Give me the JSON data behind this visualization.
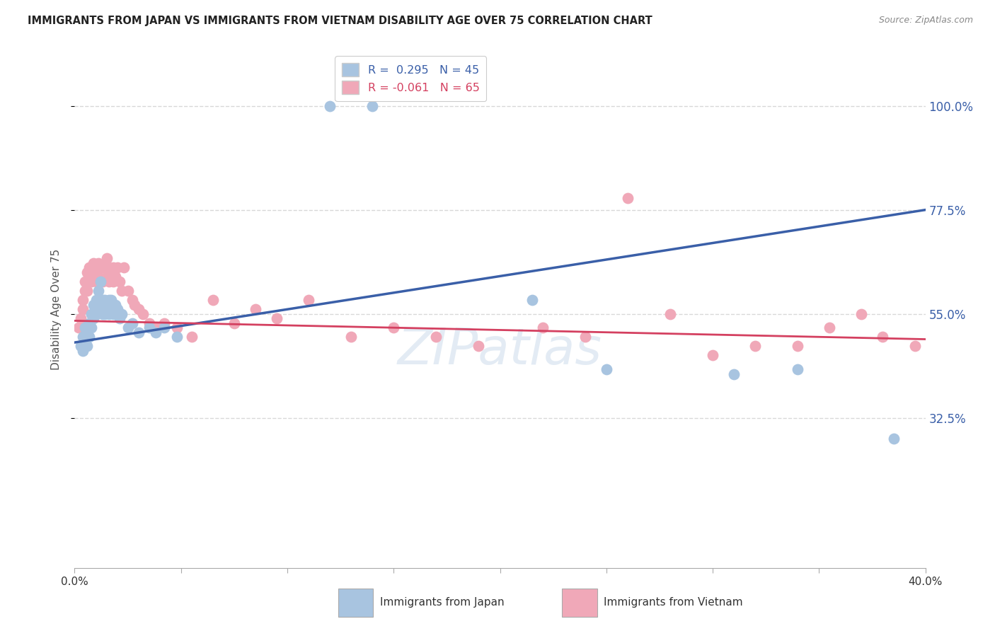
{
  "title": "IMMIGRANTS FROM JAPAN VS IMMIGRANTS FROM VIETNAM DISABILITY AGE OVER 75 CORRELATION CHART",
  "source": "Source: ZipAtlas.com",
  "ylabel": "Disability Age Over 75",
  "legend_japan_R": "0.295",
  "legend_japan_N": "45",
  "legend_vietnam_R": "-0.061",
  "legend_vietnam_N": "65",
  "japan_color": "#a8c4e0",
  "vietnam_color": "#f0a8b8",
  "japan_line_color": "#3a5fa8",
  "vietnam_line_color": "#d44060",
  "xmin": 0.0,
  "xmax": 0.4,
  "ymin": 0.0,
  "ymax": 1.12,
  "yticks": [
    0.325,
    0.55,
    0.775,
    1.0
  ],
  "ytick_labels": [
    "32.5%",
    "55.0%",
    "77.5%",
    "100.0%"
  ],
  "xticks": [
    0.0,
    0.05,
    0.1,
    0.15,
    0.2,
    0.25,
    0.3,
    0.35,
    0.4
  ],
  "xtick_labels": [
    "0.0%",
    "",
    "",
    "",
    "",
    "",
    "",
    "",
    "40.0%"
  ],
  "japan_points_x": [
    0.003,
    0.004,
    0.004,
    0.005,
    0.005,
    0.006,
    0.006,
    0.007,
    0.007,
    0.008,
    0.008,
    0.009,
    0.009,
    0.01,
    0.01,
    0.011,
    0.011,
    0.012,
    0.013,
    0.013,
    0.014,
    0.014,
    0.015,
    0.016,
    0.016,
    0.017,
    0.018,
    0.019,
    0.02,
    0.021,
    0.022,
    0.025,
    0.027,
    0.03,
    0.035,
    0.038,
    0.042,
    0.048,
    0.12,
    0.14,
    0.215,
    0.25,
    0.31,
    0.34,
    0.385
  ],
  "japan_points_y": [
    0.48,
    0.5,
    0.47,
    0.52,
    0.49,
    0.51,
    0.48,
    0.53,
    0.5,
    0.55,
    0.52,
    0.57,
    0.54,
    0.58,
    0.55,
    0.6,
    0.57,
    0.62,
    0.58,
    0.55,
    0.58,
    0.55,
    0.56,
    0.58,
    0.55,
    0.58,
    0.55,
    0.57,
    0.56,
    0.54,
    0.55,
    0.52,
    0.53,
    0.51,
    0.52,
    0.51,
    0.52,
    0.5,
    1.0,
    1.0,
    0.58,
    0.43,
    0.42,
    0.43,
    0.28
  ],
  "vietnam_points_x": [
    0.002,
    0.003,
    0.004,
    0.004,
    0.005,
    0.005,
    0.006,
    0.006,
    0.007,
    0.007,
    0.008,
    0.008,
    0.009,
    0.009,
    0.01,
    0.01,
    0.011,
    0.011,
    0.012,
    0.012,
    0.013,
    0.013,
    0.014,
    0.015,
    0.015,
    0.016,
    0.016,
    0.017,
    0.018,
    0.018,
    0.019,
    0.02,
    0.021,
    0.022,
    0.023,
    0.025,
    0.027,
    0.028,
    0.03,
    0.032,
    0.035,
    0.038,
    0.042,
    0.048,
    0.055,
    0.065,
    0.075,
    0.085,
    0.095,
    0.11,
    0.13,
    0.15,
    0.17,
    0.19,
    0.22,
    0.24,
    0.26,
    0.28,
    0.3,
    0.32,
    0.34,
    0.355,
    0.37,
    0.38,
    0.395
  ],
  "vietnam_points_y": [
    0.52,
    0.54,
    0.56,
    0.58,
    0.6,
    0.62,
    0.64,
    0.6,
    0.63,
    0.65,
    0.65,
    0.62,
    0.66,
    0.63,
    0.65,
    0.62,
    0.66,
    0.63,
    0.65,
    0.62,
    0.65,
    0.62,
    0.65,
    0.63,
    0.67,
    0.65,
    0.62,
    0.64,
    0.65,
    0.62,
    0.63,
    0.65,
    0.62,
    0.6,
    0.65,
    0.6,
    0.58,
    0.57,
    0.56,
    0.55,
    0.53,
    0.52,
    0.53,
    0.52,
    0.5,
    0.58,
    0.53,
    0.56,
    0.54,
    0.58,
    0.5,
    0.52,
    0.5,
    0.48,
    0.52,
    0.5,
    0.8,
    0.55,
    0.46,
    0.48,
    0.48,
    0.52,
    0.55,
    0.5,
    0.48
  ],
  "japan_trend_x": [
    0.0,
    0.4
  ],
  "japan_trend_y": [
    0.488,
    0.775
  ],
  "vietnam_trend_x": [
    0.0,
    0.4
  ],
  "vietnam_trend_y": [
    0.535,
    0.495
  ],
  "watermark": "ZIPatlas",
  "background_color": "#ffffff",
  "grid_color": "#d8d8d8"
}
